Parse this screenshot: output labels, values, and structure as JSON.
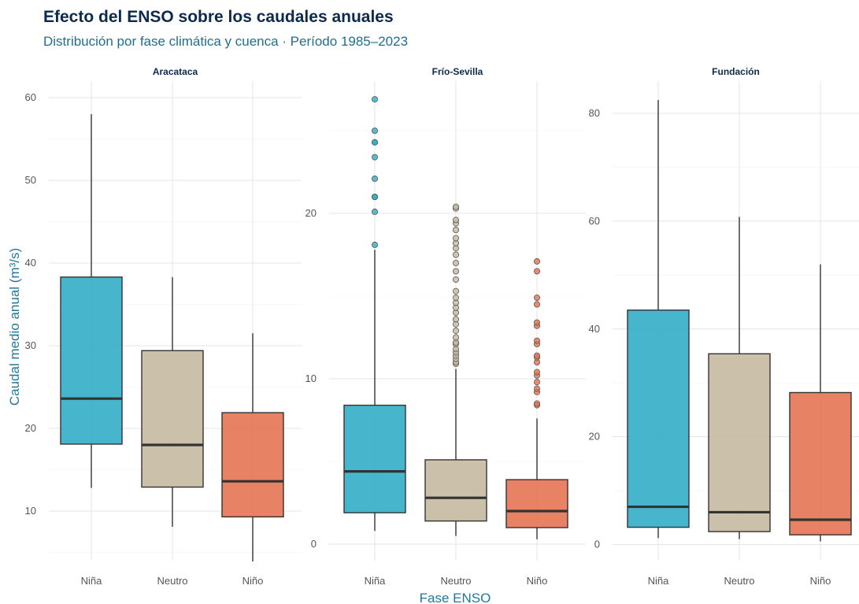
{
  "title": "Efecto del ENSO sobre los caudales anuales",
  "subtitle": "Distribución por fase climática y cuenca · Período 1985–2023",
  "xlabel": "Fase ENSO",
  "ylabel": "Caudal medio anual (m³/s)",
  "colors": {
    "Niña": "#2eacc6",
    "Neutro": "#c4b89f",
    "Niño": "#e5714e",
    "title": "#0d2a4d",
    "accent": "#1f7a9a"
  },
  "chart_data": {
    "type": "boxplot",
    "categories": [
      "Niña",
      "Neutro",
      "Niño"
    ],
    "panels": [
      {
        "name": "Aracataca",
        "ylim": [
          4,
          62
        ],
        "yticks": [
          10,
          20,
          30,
          40,
          50,
          60
        ],
        "boxes": [
          {
            "category": "Niña",
            "min": 12.8,
            "q1": 18.1,
            "median": 23.6,
            "q3": 38.3,
            "max": 58.0,
            "outliers": []
          },
          {
            "category": "Neutro",
            "min": 8.1,
            "q1": 12.9,
            "median": 18.0,
            "q3": 29.4,
            "max": 38.3,
            "outliers": []
          },
          {
            "category": "Niño",
            "min": 3.9,
            "q1": 9.3,
            "median": 13.6,
            "q3": 21.9,
            "max": 31.5,
            "outliers": []
          }
        ]
      },
      {
        "name": "Frío-Sevilla",
        "ylim": [
          -1,
          28
        ],
        "yticks": [
          0,
          10,
          20
        ],
        "boxes": [
          {
            "category": "Niña",
            "min": 0.8,
            "q1": 1.9,
            "median": 4.4,
            "q3": 8.4,
            "max": 17.8,
            "outliers": [
              18.1,
              20.1,
              21.0,
              21.0,
              22.1,
              23.4,
              24.3,
              24.3,
              25.0,
              26.9
            ]
          },
          {
            "category": "Neutro",
            "min": 0.5,
            "q1": 1.4,
            "median": 2.8,
            "q3": 5.1,
            "max": 10.6,
            "outliers": [
              10.9,
              11.0,
              11.2,
              11.4,
              11.6,
              11.8,
              12.1,
              12.2,
              12.5,
              12.9,
              13.3,
              13.6,
              14.0,
              14.3,
              14.6,
              14.9,
              15.3,
              16.0,
              16.5,
              17.0,
              17.5,
              17.9,
              18.2,
              18.5,
              19.0,
              19.4,
              19.6,
              20.3,
              20.4
            ]
          },
          {
            "category": "Niño",
            "min": 0.3,
            "q1": 1.0,
            "median": 2.0,
            "q3": 3.9,
            "max": 7.6,
            "outliers": [
              8.4,
              8.5,
              9.2,
              9.4,
              9.8,
              10.2,
              10.4,
              11.0,
              11.3,
              11.4,
              12.1,
              12.3,
              13.2,
              13.4,
              14.5,
              14.9,
              16.5,
              17.1
            ]
          }
        ]
      },
      {
        "name": "Fundación",
        "ylim": [
          -3,
          86
        ],
        "yticks": [
          0,
          20,
          40,
          60,
          80
        ],
        "boxes": [
          {
            "category": "Niña",
            "min": 1.2,
            "q1": 3.2,
            "median": 7.0,
            "q3": 43.5,
            "max": 82.5,
            "outliers": []
          },
          {
            "category": "Neutro",
            "min": 1.0,
            "q1": 2.4,
            "median": 6.0,
            "q3": 35.4,
            "max": 60.8,
            "outliers": []
          },
          {
            "category": "Niño",
            "min": 0.6,
            "q1": 1.8,
            "median": 4.6,
            "q3": 28.2,
            "max": 52.0,
            "outliers": []
          }
        ]
      }
    ]
  }
}
